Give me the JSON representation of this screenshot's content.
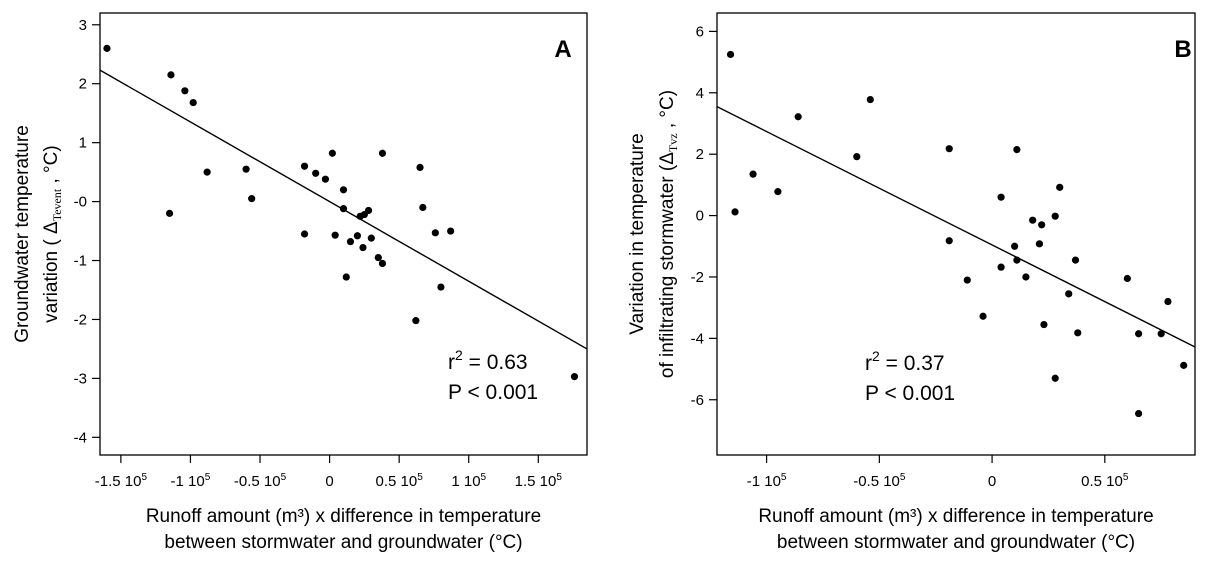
{
  "chart_data": [
    {
      "type": "scatter",
      "panel_label": "A",
      "xlabel_lines": [
        "Runoff amount (m³) x difference in temperature",
        "between stormwater and groundwater (°C)"
      ],
      "ylabel_lines": [
        "Groundwater temperature",
        "variation ( Δ",
        "Tevent",
        " , °C)"
      ],
      "xlim": [
        -165000,
        185000
      ],
      "ylim": [
        -4.3,
        3.2
      ],
      "xticks": [
        -150000,
        -100000,
        -50000,
        0,
        50000,
        100000,
        150000
      ],
      "xtick_labels": [
        {
          "mant": "-1.5 10",
          "exp": "5"
        },
        {
          "mant": "-1 10",
          "exp": "5"
        },
        {
          "mant": "-0.5 10",
          "exp": "5"
        },
        {
          "mant": "0",
          "exp": ""
        },
        {
          "mant": "0.5 10",
          "exp": "5"
        },
        {
          "mant": "1 10",
          "exp": "5"
        },
        {
          "mant": "1.5 10",
          "exp": "5"
        }
      ],
      "yticks": [
        3,
        2,
        1,
        0,
        -1,
        -2,
        -3,
        -4
      ],
      "ytick_labels": [
        "3",
        "2",
        "1",
        "-0",
        "-1",
        "-2",
        "-3",
        "-4"
      ],
      "points": [
        [
          -160000,
          2.6
        ],
        [
          -114000,
          2.15
        ],
        [
          -104000,
          1.88
        ],
        [
          -98000,
          1.68
        ],
        [
          -115000,
          -0.2
        ],
        [
          -88000,
          0.5
        ],
        [
          -60000,
          0.55
        ],
        [
          -56000,
          0.05
        ],
        [
          -18000,
          0.6
        ],
        [
          -18000,
          -0.55
        ],
        [
          -10000,
          0.48
        ],
        [
          -3000,
          0.38
        ],
        [
          2000,
          0.82
        ],
        [
          4000,
          -0.57
        ],
        [
          10000,
          0.2
        ],
        [
          10000,
          -0.12
        ],
        [
          12000,
          -1.28
        ],
        [
          15000,
          -0.68
        ],
        [
          20000,
          -0.58
        ],
        [
          22000,
          -0.25
        ],
        [
          24000,
          -0.78
        ],
        [
          25000,
          -0.22
        ],
        [
          28000,
          -0.15
        ],
        [
          30000,
          -0.62
        ],
        [
          35000,
          -0.95
        ],
        [
          38000,
          -1.05
        ],
        [
          38000,
          0.82
        ],
        [
          62000,
          -2.02
        ],
        [
          65000,
          0.58
        ],
        [
          67000,
          -0.1
        ],
        [
          76000,
          -0.53
        ],
        [
          80000,
          -1.45
        ],
        [
          87000,
          -0.5
        ],
        [
          176000,
          -2.97
        ]
      ],
      "fit_line": {
        "x": [
          -165000,
          185000
        ],
        "y": [
          2.23,
          -2.5
        ]
      },
      "annotation": {
        "r2_label": "r",
        "r2_exp": "2",
        "r2_value": " = 0.63",
        "p_text": "P < 0.001"
      }
    },
    {
      "type": "scatter",
      "panel_label": "B",
      "xlabel_lines": [
        "Runoff amount (m³) x difference in temperature",
        "between stormwater and groundwater (°C)"
      ],
      "ylabel_lines": [
        "Variation in temperature",
        "of infiltrating stormwater (Δ",
        "Tvz",
        " , °C)"
      ],
      "xlim": [
        -122000,
        90000
      ],
      "ylim": [
        -7.8,
        6.6
      ],
      "xticks": [
        -100000,
        -50000,
        0,
        50000
      ],
      "xtick_labels": [
        {
          "mant": "-1 10",
          "exp": "5"
        },
        {
          "mant": "-0.5 10",
          "exp": "5"
        },
        {
          "mant": "0",
          "exp": ""
        },
        {
          "mant": "0.5 10",
          "exp": "5"
        }
      ],
      "yticks": [
        6,
        4,
        2,
        0,
        -2,
        -4,
        -6
      ],
      "ytick_labels": [
        "6",
        "4",
        "2",
        "0",
        "-2",
        "-4",
        "-6"
      ],
      "points": [
        [
          -116000,
          5.25
        ],
        [
          -114000,
          0.12
        ],
        [
          -106000,
          1.35
        ],
        [
          -95000,
          0.78
        ],
        [
          -86000,
          3.22
        ],
        [
          -60000,
          1.92
        ],
        [
          -54000,
          3.78
        ],
        [
          -19000,
          2.18
        ],
        [
          -19000,
          -0.82
        ],
        [
          -11000,
          -2.1
        ],
        [
          -4000,
          -3.28
        ],
        [
          4000,
          0.6
        ],
        [
          4000,
          -1.68
        ],
        [
          10000,
          -1.0
        ],
        [
          11000,
          -1.45
        ],
        [
          11000,
          2.15
        ],
        [
          15000,
          -2.0
        ],
        [
          18000,
          -0.15
        ],
        [
          21000,
          -0.92
        ],
        [
          22000,
          -0.3
        ],
        [
          23000,
          -3.55
        ],
        [
          28000,
          -5.3
        ],
        [
          28000,
          -0.02
        ],
        [
          30000,
          0.92
        ],
        [
          34000,
          -2.55
        ],
        [
          37000,
          -1.45
        ],
        [
          38000,
          -3.82
        ],
        [
          60000,
          -2.05
        ],
        [
          65000,
          -6.45
        ],
        [
          65000,
          -3.85
        ],
        [
          75000,
          -3.85
        ],
        [
          78000,
          -2.8
        ],
        [
          85000,
          -4.88
        ]
      ],
      "fit_line": {
        "x": [
          -122000,
          90000
        ],
        "y": [
          3.55,
          -4.28
        ]
      },
      "annotation": {
        "r2_label": "r",
        "r2_exp": "2",
        "r2_value": " = 0.37",
        "p_text": "P < 0.001"
      }
    }
  ]
}
